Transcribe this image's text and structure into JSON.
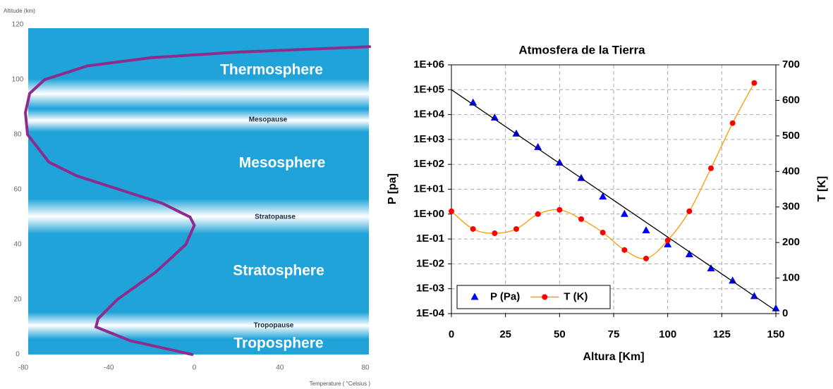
{
  "chart_data": [
    {
      "type": "line",
      "y_label": "Altitude (km)",
      "x_label": "Temperature ( °Celsius )",
      "annotations": [
        "Thermosphere",
        "Mesopause",
        "Mesosphere",
        "Stratopause",
        "Stratosphere",
        "Tropopause",
        "Troposphere"
      ],
      "x": [
        -1,
        -30,
        -46,
        -45,
        -36,
        -18,
        -4,
        0,
        -2,
        -15,
        -35,
        -55,
        -68,
        -78,
        -79,
        -77,
        -70,
        -50,
        -20,
        20,
        82
      ],
      "series": [
        {
          "color": "#8e2c8e",
          "values": [
            0,
            5,
            10,
            13,
            20,
            30,
            40,
            47,
            50,
            55,
            60,
            65,
            70,
            80,
            88,
            95,
            100,
            105,
            108,
            110,
            112
          ]
        }
      ],
      "xlim": [
        -80,
        80
      ],
      "ylim": [
        0,
        120
      ],
      "xticks": [
        -80,
        -40,
        0,
        40,
        80
      ],
      "yticks": [
        0,
        20,
        40,
        60,
        80,
        100,
        120
      ]
    },
    {
      "type": "line",
      "title": "Atmosfera de la Tierra",
      "x_label": "Altura [Km]",
      "y_label": "P [pa]",
      "y2_label": "T [K]",
      "ylog": true,
      "grid": true,
      "legend": "lower left",
      "xlim": [
        0,
        150
      ],
      "xticks": [
        0,
        25,
        50,
        75,
        100,
        125,
        150
      ],
      "ylim": [
        0.0001,
        1000000
      ],
      "yticks": [
        {
          "value": 0.0001,
          "label": "1E-04"
        },
        {
          "value": 0.001,
          "label": "1E-03"
        },
        {
          "value": 0.01,
          "label": "1E-02"
        },
        {
          "value": 0.1,
          "label": "1E-01"
        },
        {
          "value": 1,
          "label": "1E+00"
        },
        {
          "value": 10,
          "label": "1E+01"
        },
        {
          "value": 100,
          "label": "1E+02"
        },
        {
          "value": 1000,
          "label": "1E+03"
        },
        {
          "value": 10000,
          "label": "1E+04"
        },
        {
          "value": 100000,
          "label": "1E+05"
        },
        {
          "value": 1000000,
          "label": "1E+06"
        }
      ],
      "y2lim": [
        0,
        700
      ],
      "y2ticks": [
        0,
        100,
        200,
        300,
        400,
        500,
        600,
        700
      ],
      "series": [
        {
          "name": "P (Pa)",
          "color": "#0000ff",
          "marker": "triangle",
          "x": [
            10,
            20,
            30,
            40,
            50,
            60,
            70,
            80,
            90,
            100,
            110,
            120,
            130,
            140,
            150
          ],
          "values": [
            30000,
            7500,
            1700,
            490,
            115,
            28,
            5,
            1.0,
            0.22,
            0.06,
            0.024,
            0.0065,
            0.0021,
            0.0005,
            0.00016
          ]
        },
        {
          "color": "#000000",
          "x": [
            0,
            150
          ],
          "values": [
            100000,
            0.00013
          ]
        },
        {
          "name": "T (K)",
          "axis": "y2",
          "color": "#ff0000",
          "line_color": "#ff9900",
          "marker": "circle",
          "smooth": true,
          "x": [
            0,
            10,
            20,
            30,
            40,
            50,
            60,
            70,
            80,
            90,
            100,
            110,
            120,
            130,
            140
          ],
          "values": [
            288,
            238,
            226,
            238,
            280,
            292,
            266,
            228,
            179,
            155,
            206,
            288,
            409,
            536,
            649
          ]
        }
      ]
    }
  ]
}
